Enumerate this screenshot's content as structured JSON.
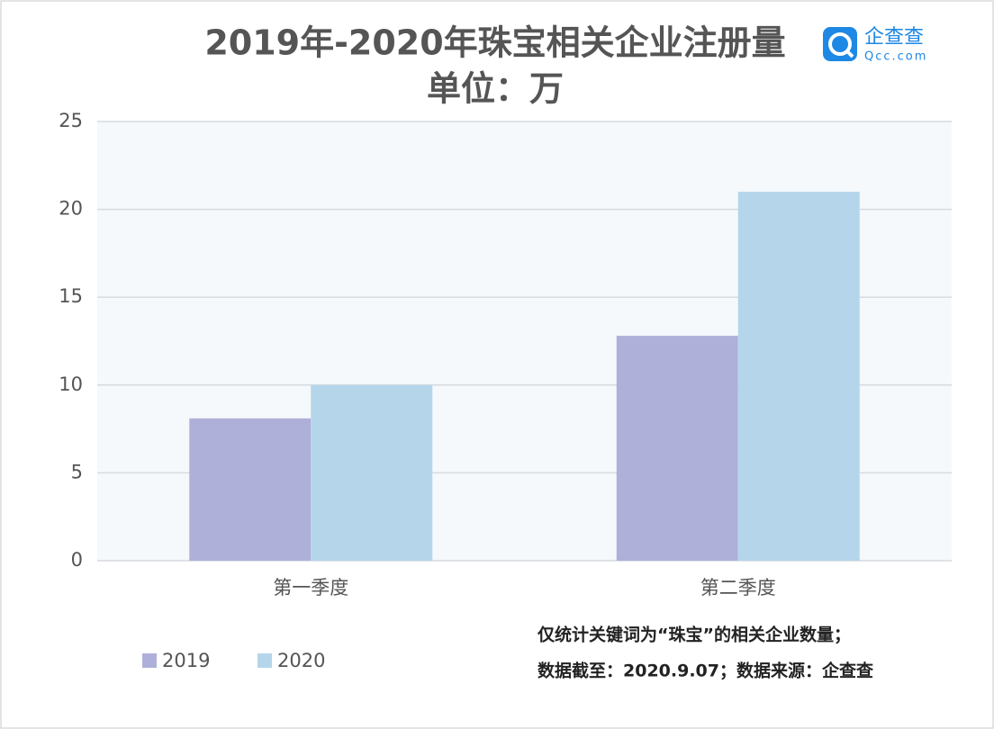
{
  "chart_data": {
    "type": "bar",
    "title": "2019年-2020年珠宝相关企业注册量",
    "subtitle": "单位：万",
    "categories": [
      "第一季度",
      "第二季度"
    ],
    "series": [
      {
        "name": "2019",
        "color": "#aeb0d9",
        "values": [
          8.1,
          12.8
        ]
      },
      {
        "name": "2020",
        "color": "#b5d6ea",
        "values": [
          10,
          21
        ]
      }
    ],
    "ylim": [
      0,
      25
    ],
    "yticks": [
      0,
      5,
      10,
      15,
      20,
      25
    ],
    "grid": true,
    "legend": "bottom-left"
  },
  "logo": {
    "name": "企查查",
    "url": "Qcc.com"
  },
  "notes": [
    "仅统计关键词为“珠宝”的相关企业数量；",
    "数据截至：2020.9.07；数据来源：企查查"
  ]
}
